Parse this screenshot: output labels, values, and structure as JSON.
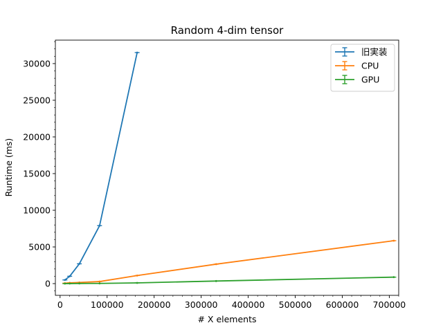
{
  "chart_data": {
    "type": "line",
    "title": "Random 4-dim tensor",
    "xlabel": "# X elements",
    "ylabel": "Runtime (ms)",
    "xlim": [
      -10000,
      720000
    ],
    "ylim": [
      -1600,
      33200
    ],
    "xticks": [
      0,
      100000,
      200000,
      300000,
      400000,
      500000,
      600000,
      700000
    ],
    "yticks": [
      0,
      5000,
      10000,
      15000,
      20000,
      25000,
      30000
    ],
    "grid": false,
    "legend_position": "top-right",
    "error_bars": true,
    "series": [
      {
        "name": "旧実装",
        "color": "#1f77b4",
        "x": [
          10240,
          20480,
          40960,
          83968,
          163840
        ],
        "y": [
          500,
          1000,
          2700,
          7900,
          31500
        ]
      },
      {
        "name": "CPU",
        "color": "#ff7f0e",
        "x": [
          10240,
          20480,
          40960,
          83968,
          163840,
          331776,
          709632
        ],
        "y": [
          60,
          110,
          160,
          280,
          1100,
          2650,
          5850
        ]
      },
      {
        "name": "GPU",
        "color": "#2ca02c",
        "x": [
          10240,
          20480,
          40960,
          83968,
          163840,
          331776,
          709632
        ],
        "y": [
          0,
          10,
          20,
          30,
          100,
          350,
          880
        ]
      }
    ]
  }
}
